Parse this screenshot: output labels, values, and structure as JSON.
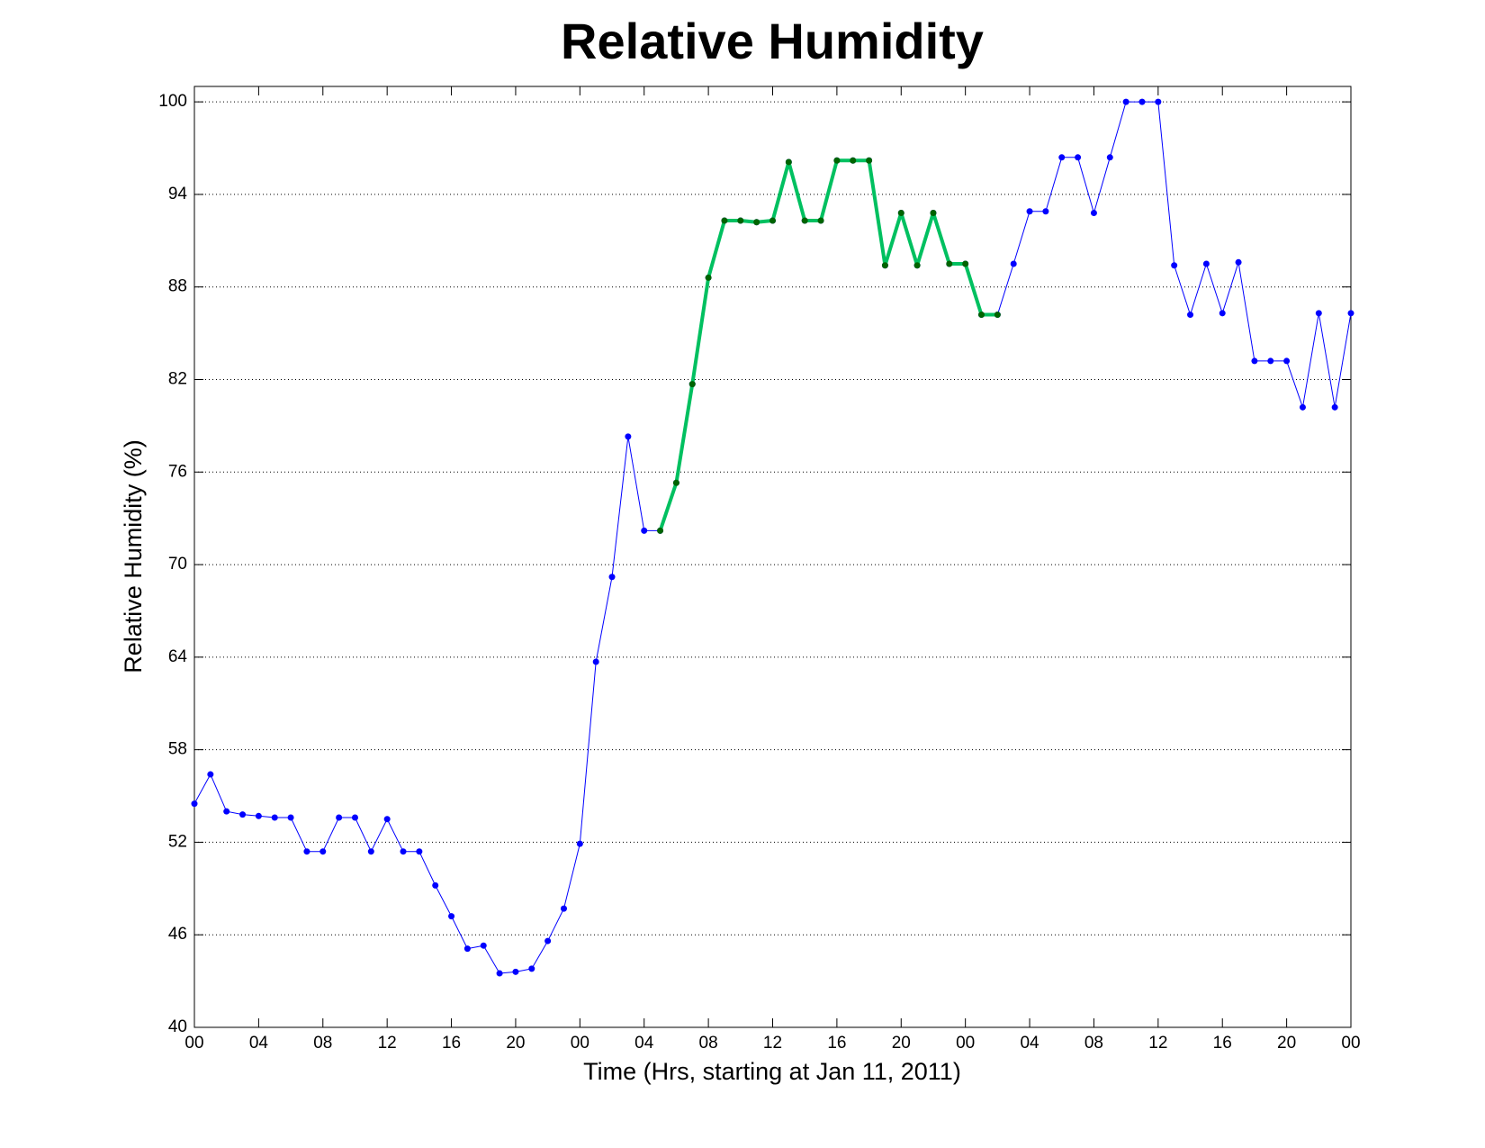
{
  "chart_data": {
    "type": "line",
    "title": "Relative Humidity",
    "x_label": "Time (Hrs, starting at Jan 11, 2011)",
    "y_label": "Relative Humidity (%)",
    "xlim": [
      0,
      72
    ],
    "ylim": [
      40,
      101
    ],
    "xticks": [
      {
        "value": 0,
        "label": "00"
      },
      {
        "value": 4,
        "label": "04"
      },
      {
        "value": 8,
        "label": "08"
      },
      12,
      16,
      20,
      {
        "value": 24,
        "label": "00"
      },
      {
        "value": 28,
        "label": "04"
      },
      {
        "value": 32,
        "label": "08"
      },
      {
        "value": 36,
        "label": "12"
      },
      {
        "value": 40,
        "label": "16"
      },
      {
        "value": 44,
        "label": "20"
      },
      {
        "value": 48,
        "label": "00"
      },
      {
        "value": 52,
        "label": "04"
      },
      {
        "value": 56,
        "label": "08"
      },
      {
        "value": 60,
        "label": "12"
      },
      {
        "value": 64,
        "label": "16"
      },
      {
        "value": 68,
        "label": "20"
      },
      {
        "value": 72,
        "label": "00"
      }
    ],
    "yticks": [
      40,
      46,
      52,
      58,
      64,
      70,
      76,
      82,
      88,
      94,
      100
    ],
    "grid": true,
    "series": [
      {
        "color": "#0000ff",
        "marker_color": "#0000ff",
        "line_width": 1,
        "x": [
          0,
          1,
          2,
          3,
          4,
          5,
          6,
          7,
          8,
          9,
          10,
          11,
          12,
          13,
          14,
          15,
          16,
          17,
          18,
          19,
          20,
          21,
          22,
          23,
          24,
          25,
          26,
          27,
          28,
          29,
          30,
          31,
          32,
          33,
          34,
          35,
          36,
          37,
          38,
          39,
          40,
          41,
          42,
          43,
          44,
          45,
          46,
          47,
          48,
          49,
          50,
          51,
          52,
          53,
          54,
          55,
          56,
          57,
          58,
          59,
          60,
          61,
          62,
          63,
          64,
          65,
          66,
          67,
          68,
          69,
          70,
          71,
          72
        ],
        "values": [
          54.5,
          56.4,
          54.0,
          53.8,
          53.7,
          53.6,
          53.6,
          51.4,
          51.4,
          53.6,
          53.6,
          51.4,
          53.5,
          51.4,
          51.4,
          49.2,
          47.2,
          45.1,
          45.3,
          43.5,
          43.6,
          43.8,
          45.6,
          47.7,
          51.9,
          63.7,
          69.2,
          78.3,
          72.2,
          72.2,
          75.3,
          81.7,
          88.6,
          92.3,
          92.3,
          92.2,
          92.3,
          96.1,
          92.3,
          92.3,
          96.2,
          96.2,
          96.2,
          89.4,
          92.8,
          89.4,
          92.8,
          89.5,
          89.5,
          86.2,
          86.2,
          89.5,
          92.9,
          92.9,
          96.4,
          96.4,
          92.8,
          96.4,
          100,
          100,
          100,
          89.4,
          86.2,
          89.5,
          86.3,
          89.6,
          83.2,
          83.2,
          83.2,
          80.2,
          86.3,
          80.2,
          86.3
        ]
      },
      {
        "color": "#00c060",
        "marker_color": "#006400",
        "line_width": 4,
        "x": [
          29,
          30,
          31,
          32,
          33,
          34,
          35,
          36,
          37,
          38,
          39,
          40,
          41,
          42,
          43,
          44,
          45,
          46,
          47,
          48,
          49,
          50
        ],
        "values": [
          72.2,
          75.3,
          81.7,
          88.6,
          92.3,
          92.3,
          92.2,
          92.3,
          96.1,
          92.3,
          92.3,
          96.2,
          96.2,
          96.2,
          89.4,
          92.8,
          89.4,
          92.8,
          89.5,
          89.5,
          86.2,
          86.2
        ]
      }
    ]
  }
}
